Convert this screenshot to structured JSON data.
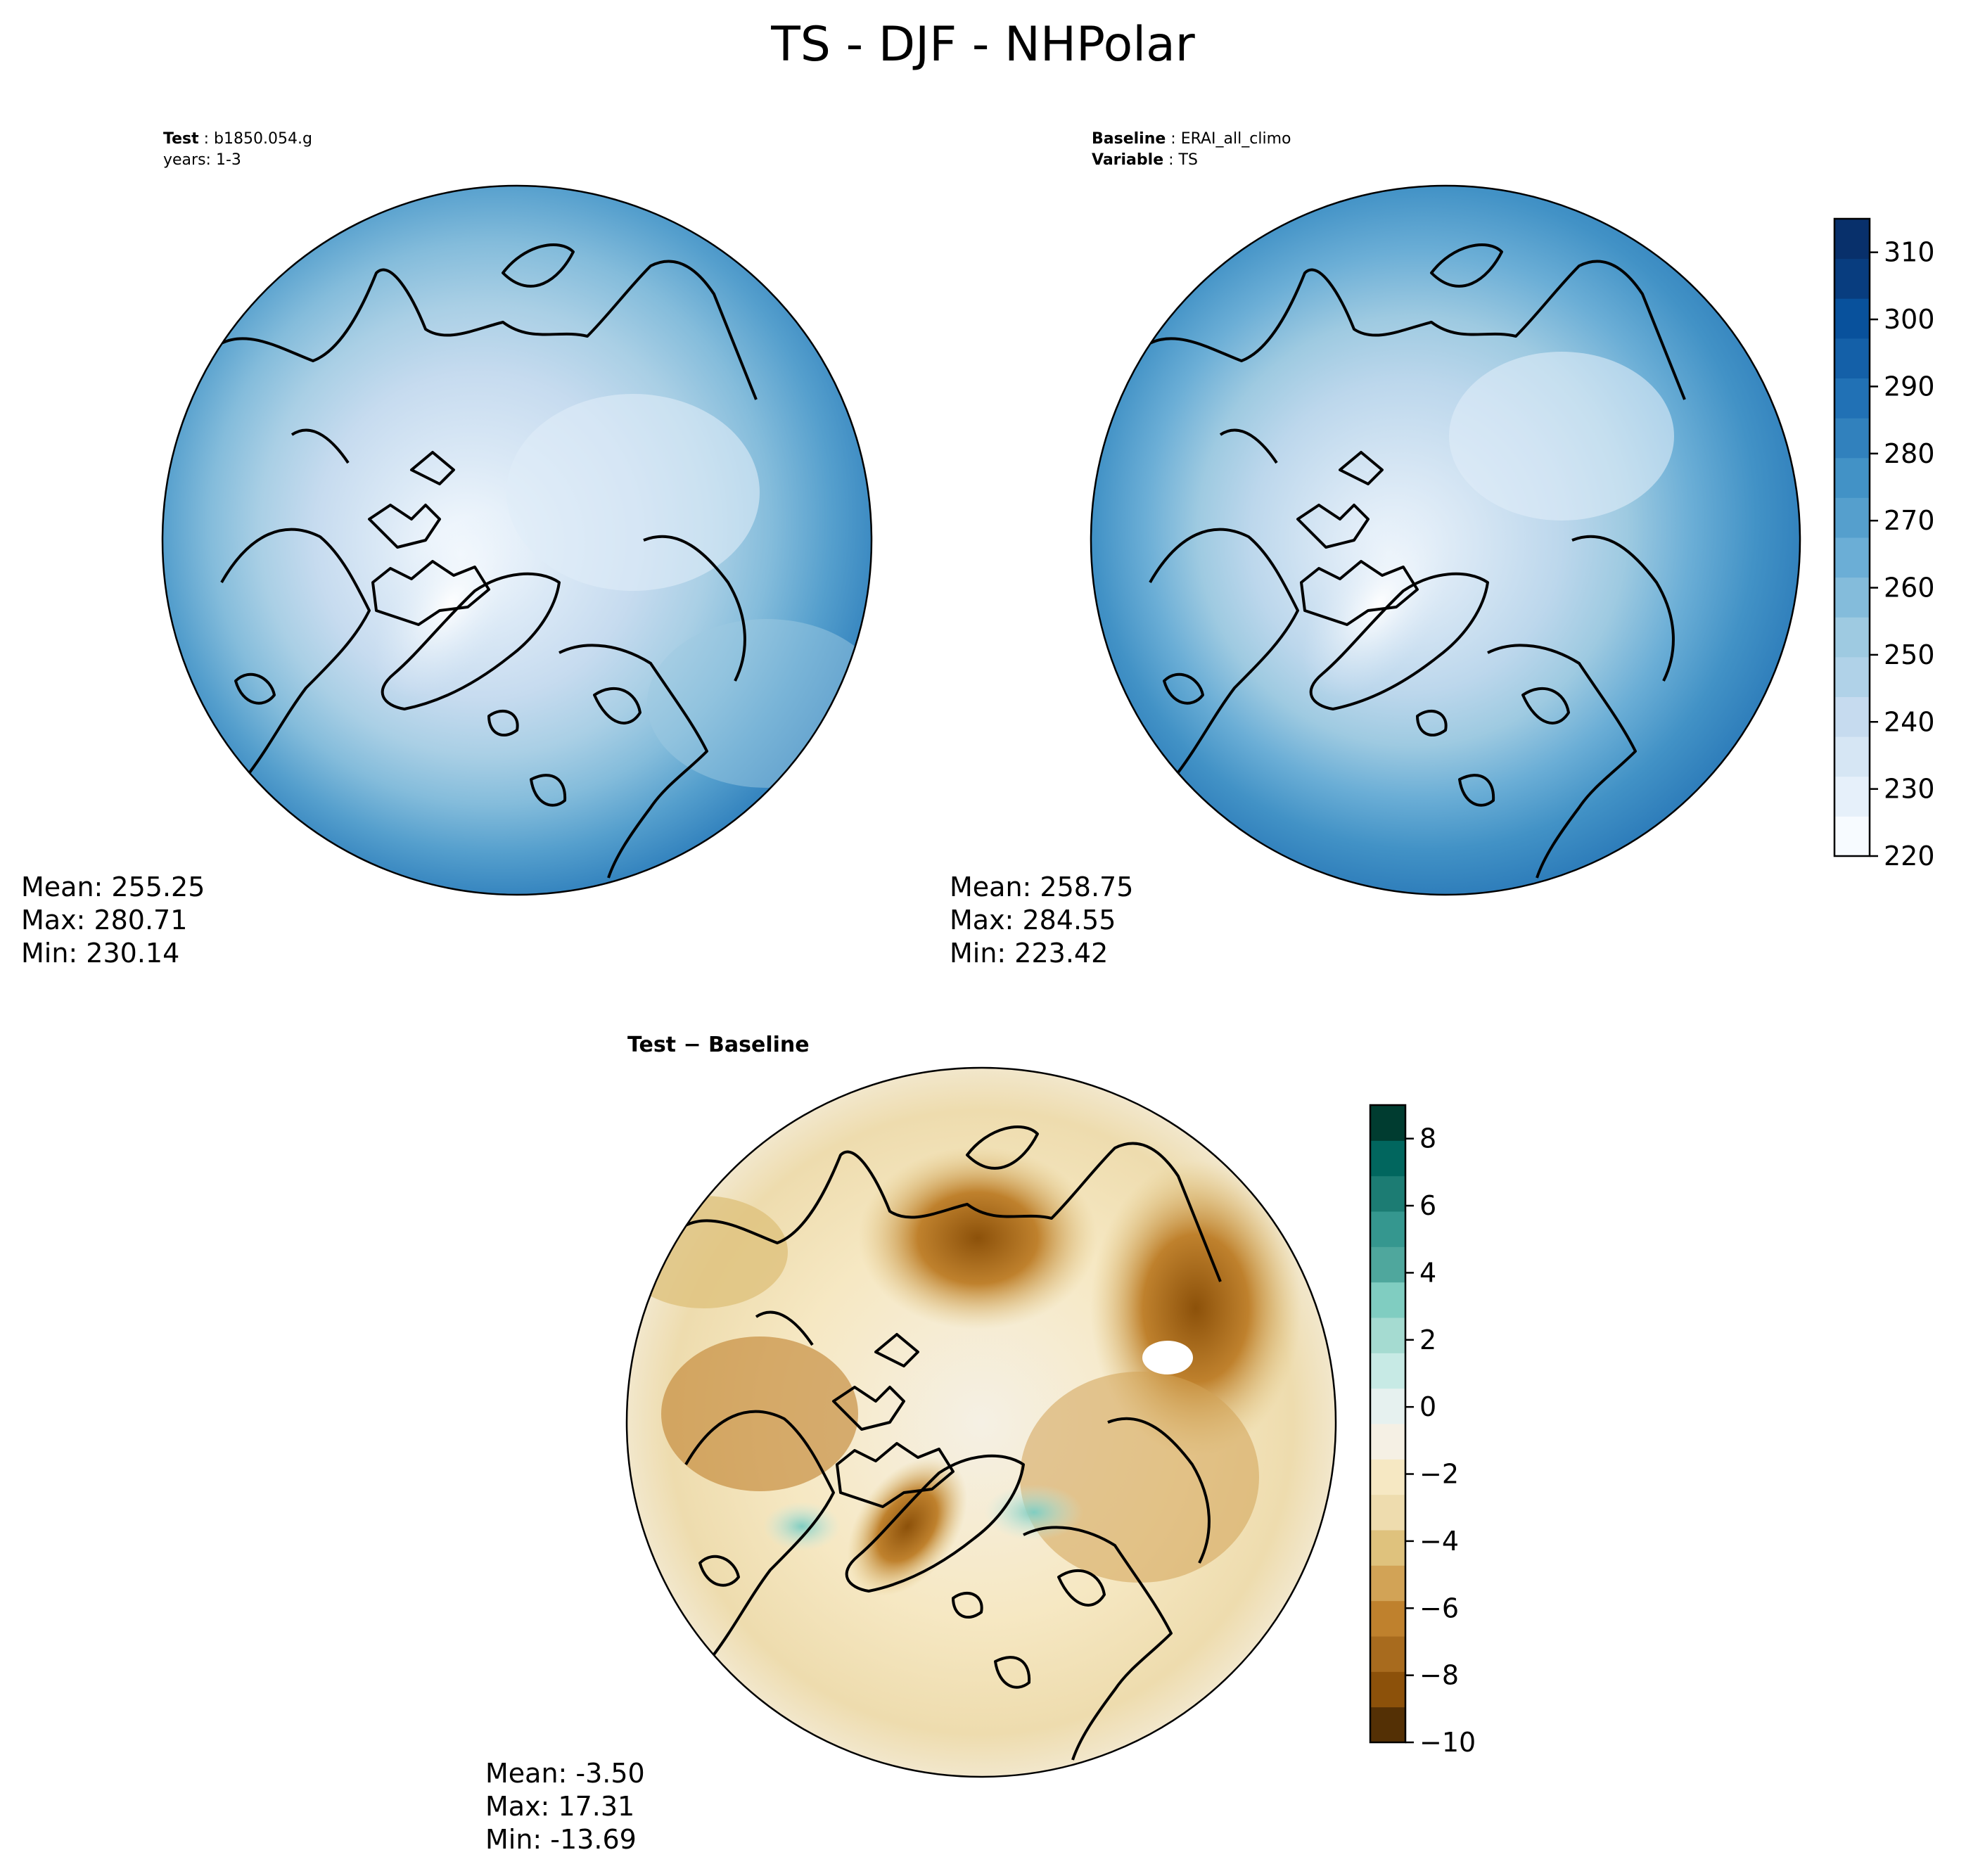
{
  "figure": {
    "suptitle": "TS - DJF - NHPolar"
  },
  "panels": {
    "test": {
      "header_label": "Test",
      "header_value": "b1850.054.g",
      "header_line2": "years: 1-3",
      "stats": {
        "mean": "Mean: 255.25",
        "max": "Max: 280.71",
        "min": "Min: 230.14"
      }
    },
    "baseline": {
      "header_label": "Baseline",
      "header_value": "ERAI_all_climo",
      "header_label2": "Variable",
      "header_value2": "TS",
      "stats": {
        "mean": "Mean: 258.75",
        "max": "Max: 284.55",
        "min": "Min: 223.42"
      }
    },
    "difference": {
      "title": "Test − Baseline",
      "stats": {
        "mean": "Mean: -3.50",
        "max": "Max: 17.31",
        "min": "Min: -13.69"
      }
    }
  },
  "chart_data": [
    {
      "type": "heatmap",
      "panel": "test",
      "projection": "north-polar-stereographic",
      "variable": "TS",
      "units": "",
      "mean": 255.25,
      "max": 280.71,
      "min": 230.14,
      "colormap": "Blues",
      "levels": [
        220,
        315
      ],
      "colorbar_ticks": [
        220,
        230,
        240,
        250,
        260,
        270,
        280,
        290,
        300,
        310
      ],
      "colorbar_tick_labels": [
        "220",
        "230",
        "240",
        "250",
        "260",
        "270",
        "280",
        "290",
        "300",
        "310"
      ]
    },
    {
      "type": "heatmap",
      "panel": "baseline",
      "projection": "north-polar-stereographic",
      "variable": "TS",
      "mean": 258.75,
      "max": 284.55,
      "min": 223.42,
      "colormap": "Blues",
      "levels": [
        220,
        315
      ],
      "colorbar_ticks": [
        220,
        230,
        240,
        250,
        260,
        270,
        280,
        290,
        300,
        310
      ],
      "colorbar_tick_labels": [
        "220",
        "230",
        "240",
        "250",
        "260",
        "270",
        "280",
        "290",
        "300",
        "310"
      ]
    },
    {
      "type": "heatmap",
      "panel": "difference",
      "projection": "north-polar-stereographic",
      "mean": -3.5,
      "max": 17.31,
      "min": -13.69,
      "colormap": "BrBG",
      "levels": [
        -10,
        9
      ],
      "colorbar_ticks": [
        -10,
        -8,
        -6,
        -4,
        -2,
        0,
        2,
        4,
        6,
        8
      ],
      "colorbar_tick_labels": [
        "−10",
        "−8",
        "−6",
        "−4",
        "−2",
        "0",
        "2",
        "4",
        "6",
        "8"
      ]
    }
  ],
  "colors": {
    "blues": [
      "#f7fbff",
      "#e6f0fa",
      "#d6e6f4",
      "#c6dbef",
      "#b0d2e8",
      "#9ecae1",
      "#84bcdb",
      "#6baed6",
      "#559fcd",
      "#4292c6",
      "#3181bd",
      "#2171b5",
      "#1460a8",
      "#08519c",
      "#083d7f",
      "#08306b"
    ],
    "brbg": [
      "#543005",
      "#8c510a",
      "#a86b1e",
      "#bf812d",
      "#d2a356",
      "#dfc27d",
      "#eedcae",
      "#f6e8c3",
      "#f5f0e4",
      "#e6f1ef",
      "#c7eae5",
      "#a5dbd1",
      "#80cdc1",
      "#4fa79d",
      "#35978f",
      "#1c7c73",
      "#01665e",
      "#003c30"
    ]
  }
}
